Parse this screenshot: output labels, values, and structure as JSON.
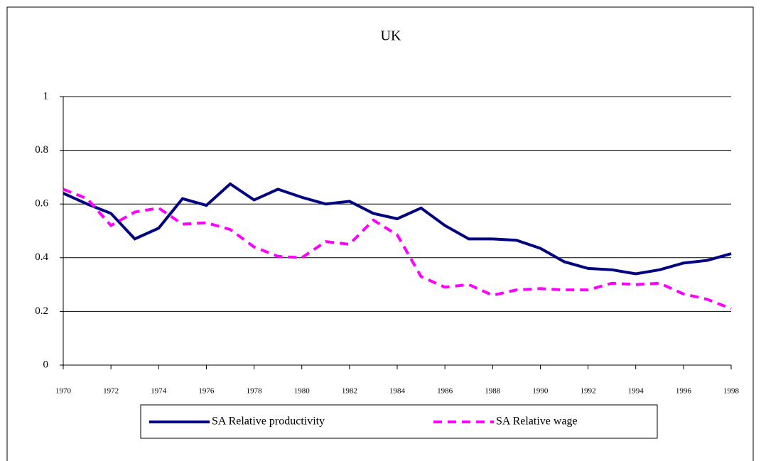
{
  "chart_data": {
    "type": "line",
    "title": "UK",
    "x": [
      1970,
      1971,
      1972,
      1973,
      1974,
      1975,
      1976,
      1977,
      1978,
      1979,
      1980,
      1981,
      1982,
      1983,
      1984,
      1985,
      1986,
      1987,
      1988,
      1989,
      1990,
      1991,
      1992,
      1993,
      1994,
      1995,
      1996,
      1997,
      1998
    ],
    "series": [
      {
        "name": "SA Relative productivity",
        "color": "#000080",
        "dash": false,
        "values": [
          0.64,
          0.6,
          0.565,
          0.47,
          0.51,
          0.62,
          0.595,
          0.675,
          0.615,
          0.655,
          0.625,
          0.6,
          0.61,
          0.565,
          0.545,
          0.585,
          0.52,
          0.47,
          0.47,
          0.465,
          0.435,
          0.385,
          0.36,
          0.355,
          0.34,
          0.355,
          0.38,
          0.39,
          0.415
        ]
      },
      {
        "name": "SA Relative wage",
        "color": "#ff00ff",
        "dash": true,
        "values": [
          0.655,
          0.62,
          0.52,
          0.57,
          0.585,
          0.525,
          0.53,
          0.505,
          0.44,
          0.405,
          0.4,
          0.46,
          0.45,
          0.54,
          0.485,
          0.33,
          0.29,
          0.3,
          0.26,
          0.28,
          0.285,
          0.28,
          0.28,
          0.305,
          0.3,
          0.305,
          0.265,
          0.245,
          0.21
        ]
      }
    ],
    "xlim": [
      1970,
      1998
    ],
    "xticks": [
      1970,
      1972,
      1974,
      1976,
      1978,
      1980,
      1982,
      1984,
      1986,
      1988,
      1990,
      1992,
      1994,
      1996,
      1998
    ],
    "ylim": [
      0,
      1
    ],
    "yticks": [
      0,
      0.2,
      0.4,
      0.6,
      0.8,
      1
    ],
    "grid": true
  }
}
